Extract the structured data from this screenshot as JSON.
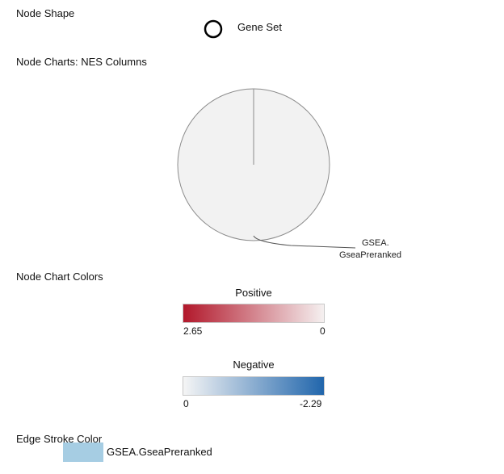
{
  "node_shape": {
    "title": "Node Shape",
    "shape_icon": "circle-outline-icon",
    "label": "Gene Set"
  },
  "node_charts": {
    "title": "Node Charts: NES Columns",
    "pie": {
      "fill": "#f2f2f2",
      "stroke": "#8c8c8c",
      "label_line1": "GSEA.",
      "label_line2": "GseaPreranked"
    }
  },
  "node_chart_colors": {
    "title": "Node Chart Colors",
    "positive": {
      "heading": "Positive",
      "min_label": "2.65",
      "max_label": "0",
      "color_start": "#b2182b",
      "color_end": "#f5f0f0"
    },
    "negative": {
      "heading": "Negative",
      "min_label": "0",
      "max_label": "-2.29",
      "color_start": "#f5f5f5",
      "color_end": "#2166ac"
    }
  },
  "edge_stroke": {
    "title": "Edge Stroke Color",
    "label": "GSEA.GseaPreranked",
    "color": "#a6cde3"
  }
}
